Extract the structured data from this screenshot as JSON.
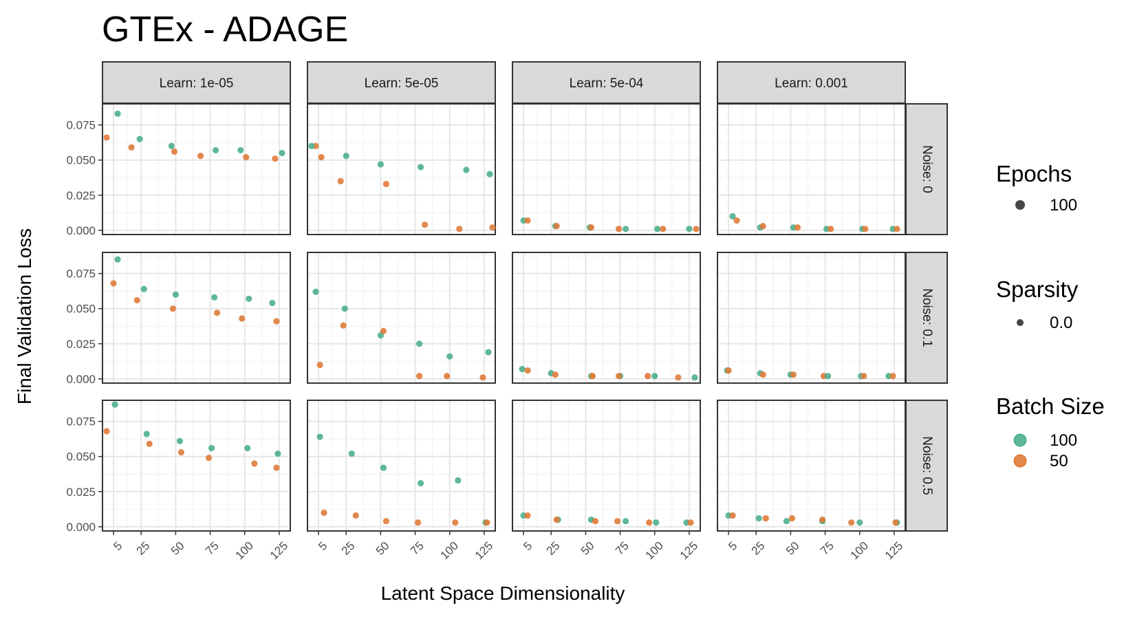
{
  "chart_data": {
    "type": "scatter",
    "title": "GTEx - ADAGE",
    "xlabel": "Latent Space Dimensionality",
    "ylabel": "Final Validation Loss",
    "xlim": [
      -3,
      133
    ],
    "ylim": [
      -0.003,
      0.09
    ],
    "x_ticks": [
      5,
      25,
      50,
      75,
      100,
      125
    ],
    "x_tick_labels": [
      "5",
      "25",
      "50",
      "75",
      "100",
      "125"
    ],
    "y_ticks": [
      0,
      0.025,
      0.05,
      0.075
    ],
    "y_tick_labels": [
      "0.000",
      "0.025",
      "0.050",
      "0.075"
    ],
    "grid": true,
    "columns": [
      "Learn: 1e-05",
      "Learn: 5e-05",
      "Learn: 5e-04",
      "Learn: 0.001"
    ],
    "rows": [
      "Noise: 0",
      "Noise: 0.1",
      "Noise: 0.5"
    ],
    "legend": {
      "position": "right",
      "epochs": {
        "title": "Epochs",
        "entries": [
          "100"
        ]
      },
      "sparsity": {
        "title": "Sparsity",
        "entries": [
          "0.0"
        ]
      },
      "batch_size": {
        "title": "Batch Size",
        "entries": [
          {
            "label": "100",
            "color": "#4daf8e"
          },
          {
            "label": "50",
            "color": "#e07b39"
          }
        ]
      }
    },
    "series": [
      {
        "name": "100",
        "color": "#4daf8e"
      },
      {
        "name": "50",
        "color": "#e07b39"
      }
    ],
    "panels": [
      {
        "row": 0,
        "col": 0,
        "points": [
          [
            8,
            0.083,
            0
          ],
          [
            0,
            0.066,
            1
          ],
          [
            24,
            0.065,
            0
          ],
          [
            18,
            0.059,
            1
          ],
          [
            47,
            0.06,
            0
          ],
          [
            49,
            0.056,
            1
          ],
          [
            79,
            0.057,
            0
          ],
          [
            68,
            0.053,
            1
          ],
          [
            97,
            0.057,
            0
          ],
          [
            101,
            0.052,
            1
          ],
          [
            127,
            0.055,
            0
          ],
          [
            122,
            0.051,
            1
          ]
        ]
      },
      {
        "row": 0,
        "col": 1,
        "points": [
          [
            3,
            0.06,
            1
          ],
          [
            0,
            0.06,
            0
          ],
          [
            7,
            0.052,
            1
          ],
          [
            25,
            0.053,
            0
          ],
          [
            21,
            0.035,
            1
          ],
          [
            50,
            0.047,
            0
          ],
          [
            54,
            0.033,
            1
          ],
          [
            79,
            0.045,
            0
          ],
          [
            82,
            0.004,
            1
          ],
          [
            112,
            0.043,
            0
          ],
          [
            107,
            0.001,
            1
          ],
          [
            129,
            0.04,
            0
          ],
          [
            131,
            0.002,
            1
          ]
        ]
      },
      {
        "row": 0,
        "col": 2,
        "points": [
          [
            5,
            0.007,
            0
          ],
          [
            8,
            0.007,
            1
          ],
          [
            28,
            0.003,
            0
          ],
          [
            29,
            0.003,
            1
          ],
          [
            53,
            0.002,
            0
          ],
          [
            54,
            0.002,
            1
          ],
          [
            74,
            0.001,
            1
          ],
          [
            79,
            0.001,
            0
          ],
          [
            102,
            0.001,
            0
          ],
          [
            106,
            0.001,
            1
          ],
          [
            125,
            0.001,
            0
          ],
          [
            130,
            0.001,
            1
          ]
        ]
      },
      {
        "row": 0,
        "col": 3,
        "points": [
          [
            8,
            0.01,
            0
          ],
          [
            11,
            0.007,
            1
          ],
          [
            28,
            0.002,
            0
          ],
          [
            30,
            0.003,
            1
          ],
          [
            52,
            0.002,
            0
          ],
          [
            55,
            0.002,
            1
          ],
          [
            76,
            0.001,
            0
          ],
          [
            79,
            0.001,
            1
          ],
          [
            102,
            0.001,
            0
          ],
          [
            104,
            0.001,
            1
          ],
          [
            124,
            0.001,
            0
          ],
          [
            127,
            0.001,
            1
          ]
        ]
      },
      {
        "row": 1,
        "col": 0,
        "points": [
          [
            8,
            0.085,
            0
          ],
          [
            5,
            0.068,
            1
          ],
          [
            27,
            0.064,
            0
          ],
          [
            22,
            0.056,
            1
          ],
          [
            50,
            0.06,
            0
          ],
          [
            48,
            0.05,
            1
          ],
          [
            78,
            0.058,
            0
          ],
          [
            80,
            0.047,
            1
          ],
          [
            103,
            0.057,
            0
          ],
          [
            98,
            0.043,
            1
          ],
          [
            120,
            0.054,
            0
          ],
          [
            123,
            0.041,
            1
          ]
        ]
      },
      {
        "row": 1,
        "col": 1,
        "points": [
          [
            3,
            0.062,
            0
          ],
          [
            6,
            0.01,
            1
          ],
          [
            24,
            0.05,
            0
          ],
          [
            23,
            0.038,
            1
          ],
          [
            50,
            0.031,
            0
          ],
          [
            52,
            0.034,
            1
          ],
          [
            78,
            0.025,
            0
          ],
          [
            78,
            0.002,
            1
          ],
          [
            100,
            0.016,
            0
          ],
          [
            98,
            0.002,
            1
          ],
          [
            128,
            0.019,
            0
          ],
          [
            124,
            0.001,
            1
          ]
        ]
      },
      {
        "row": 1,
        "col": 2,
        "points": [
          [
            4,
            0.007,
            0
          ],
          [
            8,
            0.006,
            1
          ],
          [
            25,
            0.004,
            0
          ],
          [
            28,
            0.003,
            1
          ],
          [
            54,
            0.002,
            0
          ],
          [
            55,
            0.002,
            1
          ],
          [
            75,
            0.002,
            0
          ],
          [
            74,
            0.002,
            1
          ],
          [
            100,
            0.002,
            0
          ],
          [
            95,
            0.002,
            1
          ],
          [
            117,
            0.001,
            1
          ],
          [
            129,
            0.001,
            0
          ]
        ]
      },
      {
        "row": 1,
        "col": 3,
        "points": [
          [
            4,
            0.006,
            0
          ],
          [
            5,
            0.006,
            1
          ],
          [
            28,
            0.004,
            0
          ],
          [
            30,
            0.003,
            1
          ],
          [
            50,
            0.003,
            0
          ],
          [
            52,
            0.003,
            1
          ],
          [
            74,
            0.002,
            1
          ],
          [
            77,
            0.002,
            0
          ],
          [
            101,
            0.002,
            0
          ],
          [
            103,
            0.002,
            1
          ],
          [
            121,
            0.002,
            0
          ],
          [
            124,
            0.002,
            1
          ]
        ]
      },
      {
        "row": 2,
        "col": 0,
        "points": [
          [
            6,
            0.087,
            0
          ],
          [
            0,
            0.068,
            1
          ],
          [
            29,
            0.066,
            0
          ],
          [
            31,
            0.059,
            1
          ],
          [
            53,
            0.061,
            0
          ],
          [
            54,
            0.053,
            1
          ],
          [
            76,
            0.056,
            0
          ],
          [
            74,
            0.049,
            1
          ],
          [
            102,
            0.056,
            0
          ],
          [
            107,
            0.045,
            1
          ],
          [
            124,
            0.052,
            0
          ],
          [
            123,
            0.042,
            1
          ]
        ]
      },
      {
        "row": 2,
        "col": 1,
        "points": [
          [
            6,
            0.064,
            0
          ],
          [
            9,
            0.01,
            1
          ],
          [
            29,
            0.052,
            0
          ],
          [
            32,
            0.008,
            1
          ],
          [
            52,
            0.042,
            0
          ],
          [
            54,
            0.004,
            1
          ],
          [
            79,
            0.031,
            0
          ],
          [
            77,
            0.003,
            1
          ],
          [
            106,
            0.033,
            0
          ],
          [
            104,
            0.003,
            1
          ],
          [
            126,
            0.003,
            0
          ],
          [
            127,
            0.003,
            1
          ]
        ]
      },
      {
        "row": 2,
        "col": 2,
        "points": [
          [
            5,
            0.008,
            0
          ],
          [
            8,
            0.008,
            1
          ],
          [
            30,
            0.005,
            0
          ],
          [
            29,
            0.005,
            1
          ],
          [
            54,
            0.005,
            0
          ],
          [
            57,
            0.004,
            1
          ],
          [
            79,
            0.004,
            0
          ],
          [
            73,
            0.004,
            1
          ],
          [
            101,
            0.003,
            0
          ],
          [
            96,
            0.003,
            1
          ],
          [
            123,
            0.003,
            0
          ],
          [
            126,
            0.003,
            1
          ]
        ]
      },
      {
        "row": 2,
        "col": 3,
        "points": [
          [
            5,
            0.008,
            0
          ],
          [
            8,
            0.008,
            1
          ],
          [
            27,
            0.006,
            0
          ],
          [
            32,
            0.006,
            1
          ],
          [
            47,
            0.004,
            0
          ],
          [
            51,
            0.006,
            1
          ],
          [
            73,
            0.004,
            0
          ],
          [
            73,
            0.005,
            1
          ],
          [
            100,
            0.003,
            0
          ],
          [
            94,
            0.003,
            1
          ],
          [
            127,
            0.003,
            0
          ],
          [
            126,
            0.003,
            1
          ]
        ]
      }
    ]
  }
}
